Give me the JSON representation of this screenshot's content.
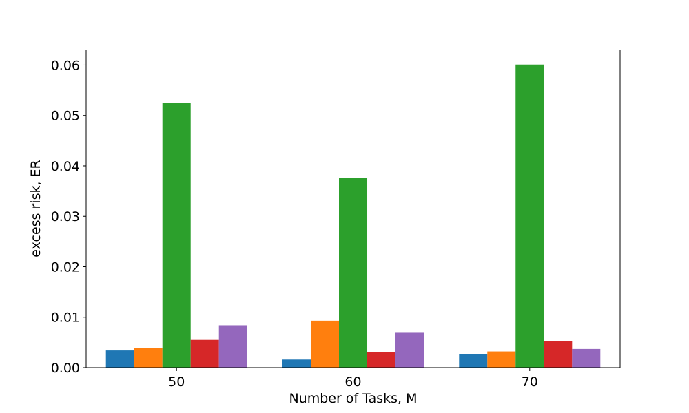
{
  "chart_data": {
    "type": "bar",
    "title": "",
    "xlabel": "Number of Tasks, M",
    "ylabel": "excess risk, ER",
    "categories": [
      "50",
      "60",
      "70"
    ],
    "ylim": [
      0,
      0.063
    ],
    "yticks": [
      "0.00",
      "0.01",
      "0.02",
      "0.03",
      "0.04",
      "0.05",
      "0.06"
    ],
    "grid": false,
    "legend": "none",
    "colors": [
      "#1f77b4",
      "#ff7f0e",
      "#2ca02c",
      "#d62728",
      "#9467bd"
    ],
    "series": [
      {
        "values": [
          0.0034,
          0.0016,
          0.0026
        ]
      },
      {
        "values": [
          0.0039,
          0.0093,
          0.0032
        ]
      },
      {
        "values": [
          0.0525,
          0.0376,
          0.0601
        ]
      },
      {
        "values": [
          0.0055,
          0.0031,
          0.0053
        ]
      },
      {
        "values": [
          0.0084,
          0.0069,
          0.0037
        ]
      }
    ]
  }
}
